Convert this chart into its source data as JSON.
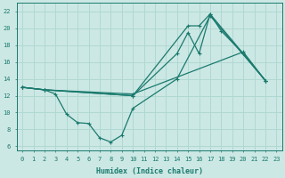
{
  "xlabel": "Humidex (Indice chaleur)",
  "xlim": [
    -0.5,
    23.5
  ],
  "ylim": [
    5.5,
    23
  ],
  "xticks": [
    0,
    1,
    2,
    3,
    4,
    5,
    6,
    7,
    8,
    9,
    10,
    11,
    12,
    13,
    14,
    15,
    16,
    17,
    18,
    19,
    20,
    21,
    22,
    23
  ],
  "yticks": [
    6,
    8,
    10,
    12,
    14,
    16,
    18,
    20,
    22
  ],
  "bg_color": "#cce8e4",
  "line_color": "#1a7a6e",
  "grid_color": "#b0d8d2",
  "line1_x": [
    0,
    2,
    3,
    4,
    5,
    6,
    7,
    8,
    9,
    10,
    14,
    17,
    22
  ],
  "line1_y": [
    13,
    12.7,
    12.2,
    9.8,
    8.8,
    8.7,
    7.0,
    6.5,
    7.3,
    10.5,
    14.0,
    21.5,
    13.8
  ],
  "line2_x": [
    0,
    2,
    10,
    14,
    15,
    16,
    17,
    18,
    20,
    22
  ],
  "line2_y": [
    13,
    12.7,
    12.0,
    17.0,
    19.5,
    17.0,
    21.7,
    19.7,
    17.0,
    13.8
  ],
  "line3_x": [
    0,
    2,
    10,
    15,
    16,
    17,
    20,
    22
  ],
  "line3_y": [
    13,
    12.7,
    12.0,
    20.3,
    20.3,
    21.7,
    17.0,
    13.8
  ],
  "line4_x": [
    0,
    2,
    10,
    20,
    22
  ],
  "line4_y": [
    13,
    12.7,
    12.2,
    17.2,
    13.8
  ]
}
